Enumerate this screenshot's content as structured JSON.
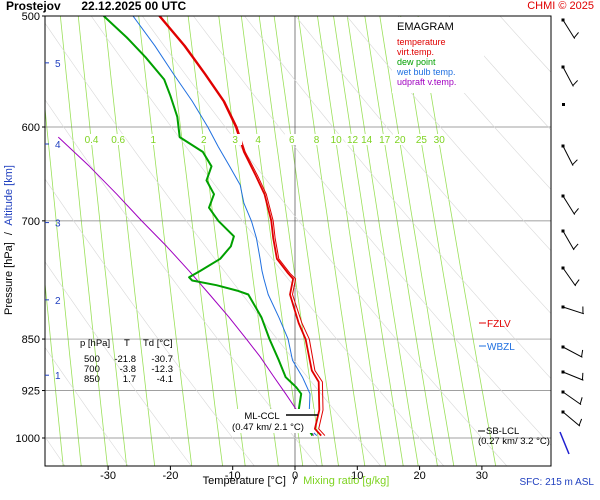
{
  "header": {
    "station": "Prostejov",
    "datetime": "22.12.2025 00 UTC",
    "copyright": "CHMI © 2025"
  },
  "footer": {
    "sfc": "SFC: 215 m ASL"
  },
  "axes": {
    "ylabel_pressure": "Pressure [hPa]",
    "ylabel_sep": "/",
    "ylabel_altitude": "Altitude [km]",
    "xlabel_temp": "Temperature [°C]",
    "xlabel_sep": "/",
    "xlabel_mix": "Mixing ratio [g/kg]"
  },
  "legend": {
    "title": "EMAGRAM",
    "items": [
      {
        "label": "temperature",
        "color": "#e00000"
      },
      {
        "label": "virt.temp.",
        "color": "#e00000"
      },
      {
        "label": "dew point",
        "color": "#00a000"
      },
      {
        "label": "wet bulb temp.",
        "color": "#2070e0"
      },
      {
        "label": "udpraft v.temp.",
        "color": "#a000c0"
      }
    ]
  },
  "table": {
    "headers": [
      "p [hPa]",
      "T",
      "Td [°C]"
    ],
    "rows": [
      [
        "500",
        "-21.8",
        "-30.7"
      ],
      [
        "700",
        "-3.8",
        "-12.3"
      ],
      [
        "850",
        "1.7",
        "-4.1"
      ]
    ]
  },
  "annotations": {
    "ml_ccl_1": "ML-CCL",
    "ml_ccl_2": "(0.47 km/ 2.1 °C)",
    "sb_lcl_1": "SB-LCL",
    "sb_lcl_2": "(0.27 km/ 3.2 °C)",
    "fzlv": "FZLV",
    "wbzl": "WBZL"
  },
  "colors": {
    "temperature": "#e00000",
    "dewpoint": "#00a000",
    "wetbulb": "#2070e0",
    "parcel": "#a000c0",
    "mixing": "#7ed321",
    "altitude": "#1f3fbf"
  },
  "chart_data": {
    "type": "line",
    "title": "EMAGRAM",
    "xlabel": "Temperature [°C] / Mixing ratio [g/kg]",
    "ylabel": "Pressure [hPa] / Altitude [km]",
    "xlim": [
      -39,
      34
    ],
    "ylim": [
      1050,
      500
    ],
    "y_log_scale": true,
    "x_ticks": [
      -30,
      -20,
      -10,
      0,
      10,
      20,
      30
    ],
    "y_ticks": [
      500,
      600,
      700,
      850,
      925,
      1000
    ],
    "altitude_ticks": [
      {
        "km": "1",
        "p": 902
      },
      {
        "km": "2",
        "p": 797
      },
      {
        "km": "3",
        "p": 702
      },
      {
        "km": "4",
        "p": 617
      },
      {
        "km": "5",
        "p": 540
      }
    ],
    "mixing_ratio_labels": [
      "0.4",
      "0.6",
      "1",
      "2",
      "3",
      "4",
      "6",
      "8",
      "10",
      "12",
      "14",
      "17",
      "20",
      "25",
      "30"
    ],
    "series": [
      {
        "name": "temperature",
        "points": [
          [
            4.2,
            996
          ],
          [
            3.2,
            985
          ],
          [
            3.9,
            955
          ],
          [
            3.8,
            912
          ],
          [
            2.7,
            895
          ],
          [
            1.7,
            850
          ],
          [
            0.6,
            828
          ],
          [
            -0.8,
            790
          ],
          [
            -0.3,
            770
          ],
          [
            -1.1,
            763
          ],
          [
            -2.9,
            745
          ],
          [
            -3.5,
            720
          ],
          [
            -3.8,
            700
          ],
          [
            -4.9,
            670
          ],
          [
            -6.3,
            650
          ],
          [
            -8.2,
            625
          ],
          [
            -9.5,
            600
          ],
          [
            -11.5,
            575
          ],
          [
            -14.5,
            550
          ],
          [
            -17.8,
            525
          ],
          [
            -21.8,
            500
          ]
        ]
      },
      {
        "name": "virt.temp.",
        "points": [
          [
            4.8,
            996
          ],
          [
            3.8,
            985
          ],
          [
            4.5,
            955
          ],
          [
            4.4,
            912
          ],
          [
            3.2,
            895
          ],
          [
            2.3,
            850
          ],
          [
            1.1,
            828
          ],
          [
            -0.4,
            790
          ],
          [
            0.1,
            770
          ],
          [
            -0.8,
            763
          ],
          [
            -2.6,
            745
          ],
          [
            -3.2,
            720
          ],
          [
            -3.5,
            700
          ],
          [
            -4.6,
            670
          ],
          [
            -6.0,
            650
          ],
          [
            -8.0,
            625
          ],
          [
            -9.3,
            600
          ],
          [
            -11.3,
            575
          ],
          [
            -14.3,
            550
          ],
          [
            -17.6,
            525
          ],
          [
            -21.6,
            500
          ]
        ]
      },
      {
        "name": "dew point",
        "points": [
          [
            2.8,
            996
          ],
          [
            1.5,
            975
          ],
          [
            0.6,
            955
          ],
          [
            1.0,
            930
          ],
          [
            0.2,
            920
          ],
          [
            -1.5,
            905
          ],
          [
            -2.6,
            880
          ],
          [
            -4.1,
            850
          ],
          [
            -5.4,
            820
          ],
          [
            -7.5,
            790
          ],
          [
            -9.3,
            785
          ],
          [
            -12.6,
            778
          ],
          [
            -16.5,
            772
          ],
          [
            -17.0,
            768
          ],
          [
            -15.2,
            760
          ],
          [
            -12.0,
            745
          ],
          [
            -10.3,
            730
          ],
          [
            -9.8,
            718
          ],
          [
            -12.3,
            700
          ],
          [
            -13.8,
            685
          ],
          [
            -13.0,
            670
          ],
          [
            -14.2,
            655
          ],
          [
            -13.4,
            640
          ],
          [
            -14.8,
            625
          ],
          [
            -18.5,
            610
          ],
          [
            -18.9,
            590
          ],
          [
            -20.0,
            570
          ],
          [
            -21.0,
            555
          ],
          [
            -24.0,
            535
          ],
          [
            -27.0,
            518
          ],
          [
            -30.7,
            500
          ]
        ]
      },
      {
        "name": "wet bulb temp.",
        "points": [
          [
            3.5,
            996
          ],
          [
            2.3,
            985
          ],
          [
            2.3,
            955
          ],
          [
            2.4,
            930
          ],
          [
            1.2,
            905
          ],
          [
            -0.4,
            880
          ],
          [
            -1.1,
            850
          ],
          [
            -2.6,
            820
          ],
          [
            -4.3,
            790
          ],
          [
            -5.0,
            770
          ],
          [
            -5.3,
            760
          ],
          [
            -5.6,
            745
          ],
          [
            -6.2,
            720
          ],
          [
            -7.0,
            700
          ],
          [
            -8.2,
            680
          ],
          [
            -8.8,
            660
          ],
          [
            -10.5,
            640
          ],
          [
            -12.3,
            620
          ],
          [
            -14.0,
            600
          ],
          [
            -16.5,
            575
          ],
          [
            -19.5,
            550
          ],
          [
            -22.5,
            525
          ],
          [
            -26.0,
            500
          ]
        ]
      },
      {
        "name": "udpraft v.temp.",
        "points": [
          [
            3.0,
            996
          ],
          [
            0.6,
            960
          ],
          [
            -1.5,
            930
          ],
          [
            -3.5,
            903
          ],
          [
            -5.6,
            875
          ],
          [
            -7.8,
            850
          ],
          [
            -10.6,
            820
          ],
          [
            -13.7,
            790
          ],
          [
            -17.0,
            760
          ],
          [
            -20.6,
            730
          ],
          [
            -24.6,
            700
          ],
          [
            -28.6,
            670
          ],
          [
            -33.0,
            640
          ],
          [
            -38.0,
            610
          ]
        ]
      }
    ]
  }
}
